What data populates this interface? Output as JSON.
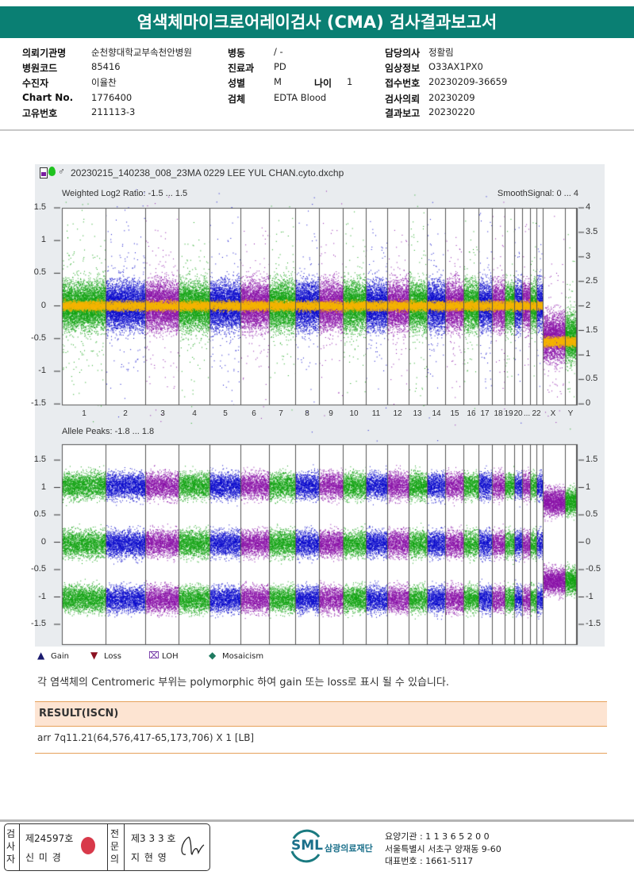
{
  "title": "염색체마이크로어레이검사 (CMA) 검사결과보고서",
  "info": {
    "col1": [
      {
        "label": "의뢰기관명",
        "value": "순천향대학교부속천안병원"
      },
      {
        "label": "병원코드",
        "value": "85416"
      },
      {
        "label": "수진자",
        "value": "이율찬"
      },
      {
        "label": "Chart No.",
        "value": "1776400"
      },
      {
        "label": "고유번호",
        "value": "211113-3"
      }
    ],
    "col2": [
      {
        "label": "병동",
        "value": "/ -"
      },
      {
        "label": "진료과",
        "value": "PD"
      },
      {
        "label": "성별",
        "value": "M"
      },
      {
        "label": "검체",
        "value": "EDTA Blood"
      }
    ],
    "age": {
      "label": "나이",
      "value": "1"
    },
    "col3": [
      {
        "label": "담당의사",
        "value": "정활림"
      },
      {
        "label": "임상정보",
        "value": "O33AX1PX0"
      },
      {
        "label": "접수번호",
        "value": "20230209-36659"
      },
      {
        "label": "검사의뢰",
        "value": "20230209"
      },
      {
        "label": "결과보고",
        "value": "20230220"
      }
    ]
  },
  "panel": {
    "filename": "20230215_140238_008_23MA 0229 LEE YUL CHAN.cyto.dxchp",
    "top_label": "Weighted Log2 Ratio: -1.5 ... 1.5",
    "top_right_label": "SmoothSignal: 0 ... 4",
    "bottom_label": "Allele Peaks: -1.8 ... 1.8",
    "top_left_ticks": [
      "1.5",
      "1",
      "0.5",
      "0",
      "-0.5",
      "-1",
      "-1.5"
    ],
    "top_right_ticks": [
      "4",
      "3.5",
      "3",
      "2.5",
      "2",
      "1.5",
      "1",
      "0.5",
      "0"
    ],
    "bottom_ticks": [
      "1.5",
      "1",
      "0.5",
      "0",
      "-0.5",
      "-1",
      "-1.5"
    ],
    "chromosomes": [
      "1",
      "2",
      "3",
      "4",
      "5",
      "6",
      "7",
      "8",
      "9",
      "10",
      "11",
      "12",
      "13",
      "14",
      "15",
      "16",
      "17",
      "18",
      "19",
      "20",
      "...",
      "22",
      "X",
      "Y"
    ],
    "colors": {
      "green": "#13a313",
      "blue": "#0a0acc",
      "purple": "#8a12a8",
      "smooth": "#f5b400"
    }
  },
  "legend": [
    {
      "icon": "triangle-up",
      "label": "Gain",
      "color": "#1a1a6e"
    },
    {
      "icon": "triangle-down",
      "label": "Loss",
      "color": "#8b1020"
    },
    {
      "icon": "lohx",
      "label": "LOH",
      "color": "#6a2aa0"
    },
    {
      "icon": "diamond",
      "label": "Mosaicism",
      "color": "#1f7a60"
    }
  ],
  "note": "각 염색체의 Centromeric 부위는 polymorphic 하여 gain 또는 loss로 표시 될 수 있습니다.",
  "result": {
    "header": "RESULT(ISCN)",
    "value": "arr 7q11.21(64,576,417-65,173,706) X 1 [LB]"
  },
  "footer": {
    "examiner_label": "검사자",
    "examiner_no": "제24597호",
    "examiner_name": "신 미 경",
    "stamp_text": "신미경",
    "doctor_label": "전문의",
    "doctor_no": "제3 3 3 호",
    "doctor_name": "지 현 영",
    "org_logo": "SML",
    "org_name": "삼광의료재단",
    "lines": [
      "요양기관 : 1 1 3 6 5 2 0 0",
      "서울특별시 서초구 양재동 9-60",
      "대표번호 : 1661-5117"
    ]
  }
}
